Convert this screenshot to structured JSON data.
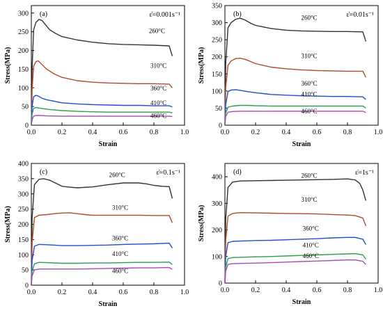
{
  "chart_data": [
    {
      "type": "line",
      "panel_label": "(a)",
      "rate_label": "ε̇=0.001s⁻¹",
      "xlabel": "Strain",
      "ylabel": "Stress(MPa)",
      "xlim": [
        0.0,
        1.0
      ],
      "ylim": [
        0,
        320
      ],
      "x_ticks": [
        0.0,
        0.2,
        0.4,
        0.6,
        0.8,
        1.0
      ],
      "x_tick_labels": [
        "0.0",
        "0.2",
        "0.4",
        "0.6",
        "0.8",
        "1.0"
      ],
      "y_ticks": [
        0,
        50,
        100,
        150,
        200,
        250,
        300
      ],
      "y_tick_labels": [
        "0",
        "50",
        "100",
        "150",
        "200",
        "250",
        "300"
      ],
      "series": [
        {
          "name": "260°C",
          "color": "#333333",
          "x": [
            0,
            0.005,
            0.015,
            0.03,
            0.05,
            0.07,
            0.09,
            0.12,
            0.16,
            0.2,
            0.3,
            0.4,
            0.5,
            0.6,
            0.7,
            0.8,
            0.9,
            0.92
          ],
          "y": [
            0,
            150,
            255,
            275,
            283,
            280,
            270,
            255,
            245,
            237,
            228,
            222,
            218,
            216,
            215,
            214,
            212,
            185
          ]
        },
        {
          "name": "310°C",
          "color": "#b34a2a",
          "x": [
            0,
            0.005,
            0.015,
            0.03,
            0.045,
            0.07,
            0.1,
            0.15,
            0.2,
            0.3,
            0.4,
            0.5,
            0.6,
            0.7,
            0.8,
            0.9,
            0.92
          ],
          "y": [
            0,
            95,
            158,
            170,
            172,
            162,
            150,
            137,
            128,
            119,
            115,
            113,
            112,
            111,
            111,
            110,
            100
          ]
        },
        {
          "name": "360°C",
          "color": "#1f4fd1",
          "x": [
            0,
            0.005,
            0.015,
            0.03,
            0.045,
            0.07,
            0.1,
            0.15,
            0.2,
            0.3,
            0.4,
            0.5,
            0.6,
            0.7,
            0.8,
            0.9,
            0.92
          ],
          "y": [
            0,
            50,
            76,
            80,
            78,
            72,
            68,
            64,
            60,
            57,
            55,
            54,
            53,
            53,
            52,
            52,
            49
          ]
        },
        {
          "name": "410°C",
          "color": "#2e9e50",
          "x": [
            0,
            0.005,
            0.015,
            0.03,
            0.05,
            0.08,
            0.12,
            0.2,
            0.3,
            0.4,
            0.5,
            0.6,
            0.7,
            0.8,
            0.9,
            0.92
          ],
          "y": [
            0,
            30,
            45,
            47,
            46,
            44,
            42,
            39,
            37,
            36,
            35,
            35,
            35,
            35,
            35,
            33
          ]
        },
        {
          "name": "460°C",
          "color": "#a64db8",
          "x": [
            0,
            0.005,
            0.015,
            0.03,
            0.05,
            0.1,
            0.2,
            0.3,
            0.4,
            0.5,
            0.6,
            0.7,
            0.8,
            0.9,
            0.92
          ],
          "y": [
            0,
            15,
            24,
            26,
            26,
            25,
            24,
            24,
            24,
            24,
            24,
            24,
            24,
            24,
            23
          ]
        }
      ]
    },
    {
      "type": "line",
      "panel_label": "(b)",
      "rate_label": "ε̇=0.01s⁻¹",
      "xlabel": "Strain",
      "ylabel": "Stress(MPa)",
      "xlim": [
        0.0,
        1.0
      ],
      "ylim": [
        0,
        350
      ],
      "x_ticks": [
        0.0,
        0.2,
        0.4,
        0.6,
        0.8,
        1.0
      ],
      "x_tick_labels": [
        "0.0",
        "0.2",
        "0.4",
        "0.6",
        "0.8",
        "1.0"
      ],
      "y_ticks": [
        0,
        50,
        100,
        150,
        200,
        250,
        300,
        350
      ],
      "y_tick_labels": [
        "0",
        "50",
        "100",
        "150",
        "200",
        "250",
        "300",
        "350"
      ],
      "series": [
        {
          "name": "260°C",
          "color": "#333333",
          "x": [
            0,
            0.005,
            0.02,
            0.04,
            0.07,
            0.1,
            0.13,
            0.17,
            0.2,
            0.3,
            0.4,
            0.5,
            0.6,
            0.7,
            0.8,
            0.9,
            0.92
          ],
          "y": [
            0,
            180,
            285,
            300,
            310,
            313,
            308,
            298,
            292,
            283,
            278,
            276,
            275,
            274,
            274,
            273,
            245
          ]
        },
        {
          "name": "310°C",
          "color": "#b34a2a",
          "x": [
            0,
            0.005,
            0.02,
            0.04,
            0.07,
            0.1,
            0.13,
            0.17,
            0.2,
            0.3,
            0.4,
            0.5,
            0.6,
            0.7,
            0.8,
            0.9,
            0.92
          ],
          "y": [
            0,
            110,
            175,
            188,
            195,
            196,
            193,
            186,
            180,
            170,
            165,
            162,
            160,
            159,
            158,
            158,
            140
          ]
        },
        {
          "name": "360°C",
          "color": "#1f4fd1",
          "x": [
            0,
            0.005,
            0.02,
            0.04,
            0.07,
            0.1,
            0.15,
            0.2,
            0.3,
            0.4,
            0.5,
            0.6,
            0.7,
            0.8,
            0.9,
            0.92
          ],
          "y": [
            0,
            60,
            98,
            103,
            104,
            102,
            98,
            95,
            90,
            88,
            86,
            85,
            84,
            84,
            83,
            75
          ]
        },
        {
          "name": "410°C",
          "color": "#2e9e50",
          "x": [
            0,
            0.005,
            0.02,
            0.05,
            0.1,
            0.15,
            0.2,
            0.3,
            0.4,
            0.5,
            0.6,
            0.7,
            0.8,
            0.9,
            0.92
          ],
          "y": [
            0,
            35,
            53,
            56,
            58,
            58,
            57,
            56,
            56,
            56,
            56,
            56,
            56,
            56,
            50
          ]
        },
        {
          "name": "460°C",
          "color": "#a64db8",
          "x": [
            0,
            0.005,
            0.02,
            0.05,
            0.1,
            0.2,
            0.3,
            0.4,
            0.5,
            0.6,
            0.7,
            0.8,
            0.9,
            0.92
          ],
          "y": [
            0,
            25,
            38,
            40,
            41,
            41,
            41,
            41,
            41,
            41,
            41,
            41,
            41,
            37
          ]
        }
      ]
    },
    {
      "type": "line",
      "panel_label": "(c)",
      "rate_label": "ε̇=0.1s⁻¹",
      "xlabel": "Strain",
      "ylabel": "Stress(MPa)",
      "xlim": [
        0.0,
        1.0
      ],
      "ylim": [
        0,
        400
      ],
      "x_ticks": [
        0.0,
        0.2,
        0.4,
        0.6,
        0.8,
        1.0
      ],
      "x_tick_labels": [
        "0.0",
        "0.2",
        "0.4",
        "0.6",
        "0.8",
        "1.0"
      ],
      "y_ticks": [
        0,
        50,
        100,
        150,
        200,
        250,
        300,
        350,
        400
      ],
      "y_tick_labels": [
        "0",
        "50",
        "100",
        "150",
        "200",
        "250",
        "300",
        "350",
        "400"
      ],
      "series": [
        {
          "name": "260°C",
          "color": "#333333",
          "x": [
            0,
            0.005,
            0.02,
            0.05,
            0.08,
            0.12,
            0.16,
            0.2,
            0.25,
            0.3,
            0.4,
            0.5,
            0.6,
            0.7,
            0.75,
            0.8,
            0.85,
            0.9,
            0.92
          ],
          "y": [
            0,
            220,
            330,
            348,
            350,
            345,
            335,
            325,
            322,
            320,
            323,
            330,
            336,
            336,
            333,
            328,
            325,
            324,
            285
          ]
        },
        {
          "name": "310°C",
          "color": "#b34a2a",
          "x": [
            0,
            0.005,
            0.02,
            0.05,
            0.1,
            0.15,
            0.2,
            0.25,
            0.3,
            0.35,
            0.4,
            0.5,
            0.6,
            0.7,
            0.8,
            0.9,
            0.92
          ],
          "y": [
            0,
            140,
            222,
            230,
            232,
            235,
            237,
            238,
            235,
            232,
            230,
            230,
            230,
            230,
            229,
            229,
            205
          ]
        },
        {
          "name": "360°C",
          "color": "#1f4fd1",
          "x": [
            0,
            0.005,
            0.02,
            0.05,
            0.1,
            0.2,
            0.3,
            0.4,
            0.5,
            0.6,
            0.7,
            0.8,
            0.9,
            0.92
          ],
          "y": [
            0,
            80,
            128,
            134,
            133,
            130,
            130,
            131,
            132,
            134,
            135,
            136,
            138,
            122
          ]
        },
        {
          "name": "410°C",
          "color": "#2e9e50",
          "x": [
            0,
            0.005,
            0.02,
            0.05,
            0.1,
            0.2,
            0.3,
            0.4,
            0.5,
            0.6,
            0.7,
            0.8,
            0.9,
            0.92
          ],
          "y": [
            0,
            45,
            70,
            75,
            74,
            72,
            72,
            73,
            73,
            74,
            75,
            75,
            76,
            68
          ]
        },
        {
          "name": "460°C",
          "color": "#a64db8",
          "x": [
            0,
            0.005,
            0.02,
            0.05,
            0.1,
            0.2,
            0.3,
            0.4,
            0.5,
            0.6,
            0.7,
            0.8,
            0.9,
            0.92
          ],
          "y": [
            0,
            30,
            50,
            53,
            53,
            53,
            53,
            54,
            55,
            56,
            57,
            57,
            58,
            52
          ]
        }
      ]
    },
    {
      "type": "line",
      "panel_label": "(d)",
      "rate_label": "ε̇=1s⁻¹",
      "xlabel": "Strain",
      "ylabel": "Stress(MPa)",
      "xlim": [
        0.0,
        1.0
      ],
      "ylim": [
        0,
        450
      ],
      "x_ticks": [
        0.0,
        0.2,
        0.4,
        0.6,
        0.8,
        1.0
      ],
      "x_tick_labels": [
        "0.0",
        "0.2",
        "0.4",
        "0.6",
        "0.8",
        "1.0"
      ],
      "y_ticks": [
        0,
        100,
        200,
        300,
        400
      ],
      "y_tick_labels": [
        "0",
        "100",
        "200",
        "300",
        "400"
      ],
      "series": [
        {
          "name": "260°C",
          "color": "#333333",
          "x": [
            0,
            0.005,
            0.02,
            0.05,
            0.1,
            0.2,
            0.3,
            0.4,
            0.5,
            0.6,
            0.7,
            0.8,
            0.85,
            0.88,
            0.9,
            0.92
          ],
          "y": [
            0,
            240,
            360,
            380,
            384,
            385,
            386,
            387,
            388,
            389,
            390,
            392,
            388,
            375,
            350,
            310
          ]
        },
        {
          "name": "310°C",
          "color": "#b34a2a",
          "x": [
            0,
            0.005,
            0.02,
            0.05,
            0.1,
            0.2,
            0.3,
            0.4,
            0.5,
            0.6,
            0.7,
            0.8,
            0.85,
            0.9,
            0.92
          ],
          "y": [
            0,
            160,
            252,
            262,
            265,
            264,
            263,
            262,
            261,
            260,
            258,
            256,
            254,
            245,
            215
          ]
        },
        {
          "name": "360°C",
          "color": "#1f4fd1",
          "x": [
            0,
            0.005,
            0.02,
            0.05,
            0.1,
            0.2,
            0.3,
            0.4,
            0.5,
            0.6,
            0.7,
            0.8,
            0.85,
            0.9,
            0.92
          ],
          "y": [
            0,
            100,
            152,
            157,
            158,
            160,
            161,
            163,
            165,
            167,
            170,
            172,
            172,
            165,
            145
          ]
        },
        {
          "name": "410°C",
          "color": "#2e9e50",
          "x": [
            0,
            0.005,
            0.02,
            0.05,
            0.1,
            0.2,
            0.3,
            0.4,
            0.5,
            0.6,
            0.7,
            0.8,
            0.85,
            0.9,
            0.92
          ],
          "y": [
            0,
            60,
            92,
            96,
            97,
            99,
            100,
            102,
            104,
            106,
            108,
            110,
            111,
            106,
            90
          ]
        },
        {
          "name": "460°C",
          "color": "#a64db8",
          "x": [
            0,
            0.005,
            0.02,
            0.05,
            0.1,
            0.2,
            0.3,
            0.4,
            0.5,
            0.6,
            0.7,
            0.8,
            0.85,
            0.9,
            0.92
          ],
          "y": [
            0,
            45,
            70,
            73,
            74,
            75,
            77,
            79,
            81,
            83,
            85,
            87,
            87,
            82,
            70
          ]
        }
      ]
    }
  ]
}
